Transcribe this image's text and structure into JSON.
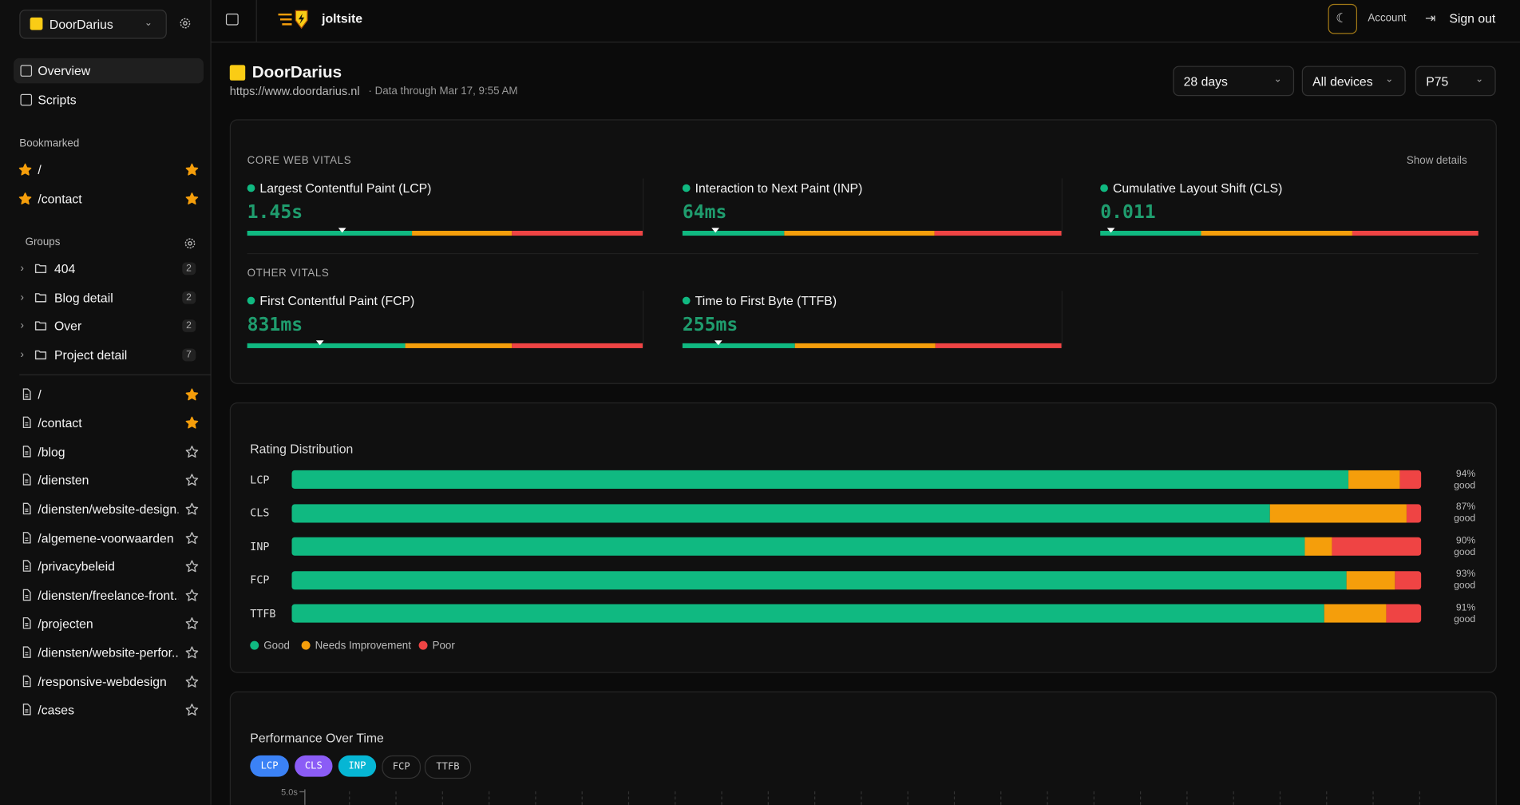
{
  "sidebar": {
    "site": "DoorDarius",
    "nav": [
      "Overview",
      "Scripts"
    ],
    "bookmarked_title": "Bookmarked",
    "bookmarked": [
      "/",
      "/contact"
    ],
    "groups_title": "Groups",
    "groups": [
      {
        "name": "404",
        "count": 2
      },
      {
        "name": "Blog detail",
        "count": 2
      },
      {
        "name": "Over",
        "count": 2
      },
      {
        "name": "Project detail",
        "count": 7
      }
    ],
    "pages": [
      {
        "path": "/",
        "starred": true
      },
      {
        "path": "/contact",
        "starred": true
      },
      {
        "path": "/blog",
        "starred": false
      },
      {
        "path": "/diensten",
        "starred": false
      },
      {
        "path": "/diensten/website-design...",
        "starred": false
      },
      {
        "path": "/algemene-voorwaarden",
        "starred": false
      },
      {
        "path": "/privacybeleid",
        "starred": false
      },
      {
        "path": "/diensten/freelance-front...",
        "starred": false
      },
      {
        "path": "/projecten",
        "starred": false
      },
      {
        "path": "/diensten/website-perfor...",
        "starred": false
      },
      {
        "path": "/responsive-webdesign",
        "starred": false
      },
      {
        "path": "/cases",
        "starred": false
      }
    ]
  },
  "topbar": {
    "brand": "joltsite",
    "account": "Account",
    "sign_out": "Sign out"
  },
  "header": {
    "title": "DoorDarius",
    "url": "https://www.doordarius.nl",
    "data_through": "· Data through Mar 17, 9:55 AM",
    "filters": [
      "28 days",
      "All devices",
      "P75"
    ]
  },
  "vitals": {
    "core_title": "CORE WEB VITALS",
    "show_details": "Show details",
    "core": [
      {
        "name": "Largest Contentful Paint (LCP)",
        "value": "1.45s",
        "segments": [
          41.7,
          25.2,
          33.1
        ],
        "marker": 24
      },
      {
        "name": "Interaction to Next Paint (INP)",
        "value": "64ms",
        "segments": [
          26.9,
          39.6,
          33.5
        ],
        "marker": 8.7
      },
      {
        "name": "Cumulative Layout Shift (CLS)",
        "value": "0.011",
        "segments": [
          26.7,
          40,
          33.3
        ],
        "marker": 2.8
      }
    ],
    "other_title": "OTHER VITALS",
    "other": [
      {
        "name": "First Contentful Paint (FCP)",
        "value": "831ms",
        "segments": [
          40,
          27,
          33
        ],
        "marker": 18.4
      },
      {
        "name": "Time to First Byte (TTFB)",
        "value": "255ms",
        "segments": [
          29.7,
          37.1,
          33.2
        ],
        "marker": 9.5
      }
    ]
  },
  "rating_distribution": {
    "title": "Rating Distribution",
    "colors": [
      "#10b981",
      "#f59e0b",
      "#ef4444"
    ],
    "legend": [
      "Good",
      "Needs Improvement",
      "Poor"
    ],
    "rows": [
      {
        "label": "LCP",
        "values": [
          93.6,
          4.5,
          1.9
        ],
        "value_label": "94%",
        "suffix": "good"
      },
      {
        "label": "CLS",
        "values": [
          86.6,
          12.1,
          1.3
        ],
        "value_label": "87%",
        "suffix": "good"
      },
      {
        "label": "INP",
        "values": [
          89.7,
          2.4,
          7.9
        ],
        "value_label": "90%",
        "suffix": "good"
      },
      {
        "label": "FCP",
        "values": [
          93.4,
          4.3,
          2.3
        ],
        "value_label": "93%",
        "suffix": "good"
      },
      {
        "label": "TTFB",
        "values": [
          91.4,
          5.5,
          3.1
        ],
        "value_label": "91%",
        "suffix": "good"
      }
    ]
  },
  "performance": {
    "title": "Performance Over Time",
    "tabs": [
      {
        "label": "LCP",
        "color": "#3b82f6",
        "active": true
      },
      {
        "label": "CLS",
        "color": "#8b5cf6",
        "active": true
      },
      {
        "label": "INP",
        "color": "#06b6d4",
        "active": true
      },
      {
        "label": "FCP",
        "color": "#3b82f6",
        "active": false
      },
      {
        "label": "TTFB",
        "color": "#3b82f6",
        "active": false
      }
    ],
    "y_top": "5.0s"
  }
}
